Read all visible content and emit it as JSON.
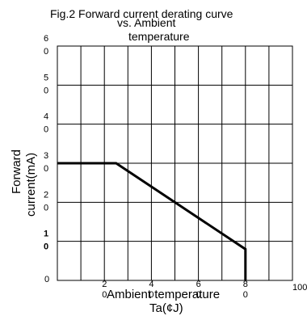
{
  "title": {
    "line1": "Fig.2 Forward current derating curve",
    "line2": "vs. Ambient",
    "line3": "temperature"
  },
  "ylabel": {
    "line1": "Forward",
    "line2": "current(mA)"
  },
  "xlabel": {
    "line1": "Ambient temperature",
    "line2": "Ta(¢J)"
  },
  "chart_data": {
    "type": "line",
    "title": "Fig.2 Forward current derating curve vs. Ambient temperature",
    "xlabel": "Ambient temperature Ta(¢J)",
    "ylabel": "Forward current(mA)",
    "xlim": [
      0,
      100
    ],
    "ylim": [
      0,
      60
    ],
    "grid": true,
    "x_ticks": [
      {
        "value": 20,
        "l1": "2",
        "l2": "0"
      },
      {
        "value": 40,
        "l1": "4",
        "l2": "0"
      },
      {
        "value": 60,
        "l1": "6",
        "l2": "0"
      },
      {
        "value": 80,
        "l1": "8",
        "l2": "0"
      },
      {
        "value": 100,
        "l1": "100",
        "l2": ""
      }
    ],
    "y_ticks": [
      {
        "value": 0,
        "l1": "0",
        "l2": ""
      },
      {
        "value": 10,
        "l1": "1",
        "l2": "0"
      },
      {
        "value": 20,
        "l1": "2",
        "l2": "0"
      },
      {
        "value": 30,
        "l1": "3",
        "l2": "0"
      },
      {
        "value": 40,
        "l1": "4",
        "l2": "0"
      },
      {
        "value": 50,
        "l1": "5",
        "l2": "0"
      },
      {
        "value": 60,
        "l1": "6",
        "l2": "0"
      }
    ],
    "series": [
      {
        "x": [
          0,
          25,
          80,
          80
        ],
        "y": [
          30,
          30,
          8,
          0
        ]
      }
    ],
    "line_color": "#000000",
    "grid_color": "#000000"
  }
}
